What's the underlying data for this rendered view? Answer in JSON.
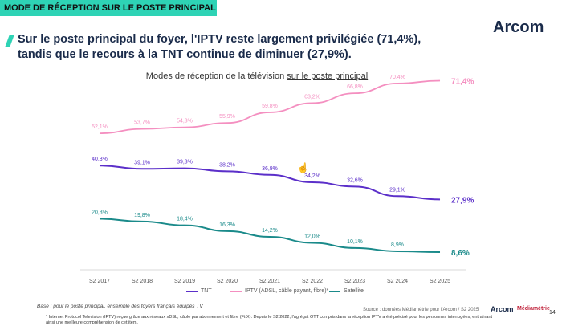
{
  "header": {
    "tag": "MODE DE RÉCEPTION SUR LE POSTE PRINCIPAL"
  },
  "logo": {
    "text": "Arcom"
  },
  "headline": {
    "line1": "Sur le poste principal du foyer, l'IPTV reste largement privilégiée (71,4%),",
    "line2": "tandis que le recours à la TNT continue de diminuer (27,9%)."
  },
  "chart_data": {
    "type": "line",
    "title_prefix": "Modes de réception de la télévision ",
    "title_underlined": "sur le poste principal",
    "categories": [
      "S2 2017",
      "S2 2018",
      "S2 2019",
      "S2 2020",
      "S2 2021",
      "S2 2022",
      "S2 2023",
      "S2 2024",
      "S2 2025"
    ],
    "series": [
      {
        "name": "TNT",
        "color": "#5b2fc9",
        "values": [
          40.3,
          39.1,
          39.3,
          38.2,
          36.9,
          34.2,
          32.6,
          29.1,
          27.9
        ],
        "labels": [
          "40,3%",
          "39,1%",
          "39,3%",
          "38,2%",
          "36,9%",
          "34,2%",
          "32,6%",
          "29,1%",
          "27,9%"
        ]
      },
      {
        "name": "IPTV (ADSL, câble payant, fibre)*",
        "color": "#f48fc0",
        "values": [
          52.1,
          53.7,
          54.3,
          55.9,
          59.8,
          63.2,
          66.8,
          70.4,
          71.4
        ],
        "labels": [
          "52,1%",
          "53,7%",
          "54,3%",
          "55,9%",
          "59,8%",
          "63,2%",
          "66,8%",
          "70,4%",
          "71,4%"
        ]
      },
      {
        "name": "Satellite",
        "color": "#1a8a8a",
        "values": [
          20.8,
          19.8,
          18.4,
          16.3,
          14.2,
          12.0,
          10.1,
          8.9,
          8.6
        ],
        "labels": [
          "20,8%",
          "19,8%",
          "18,4%",
          "16,3%",
          "14,2%",
          "12,0%",
          "10,1%",
          "8,9%",
          "8,6%"
        ]
      }
    ]
  },
  "base_note": "Base : pour le poste principal, ensemble des foyers français équipés TV",
  "source": "Source : données Médiamétrie pour l'Arcom / S2 2025",
  "footer_logo": "Arcom",
  "footer_logo2": "Médiamétrie",
  "page_number": "14",
  "footnote": "* Internet Protocol Television (IPTV) reçue grâce aux réseaux xDSL, câble par abonnement et fibre (FttX). Depuis le S2 2022, l'agrégat OTT compris dans la réception IPTV a été précisé pour les personnes interrogées, entraînant ainsi une meilleure compréhension de cet item."
}
